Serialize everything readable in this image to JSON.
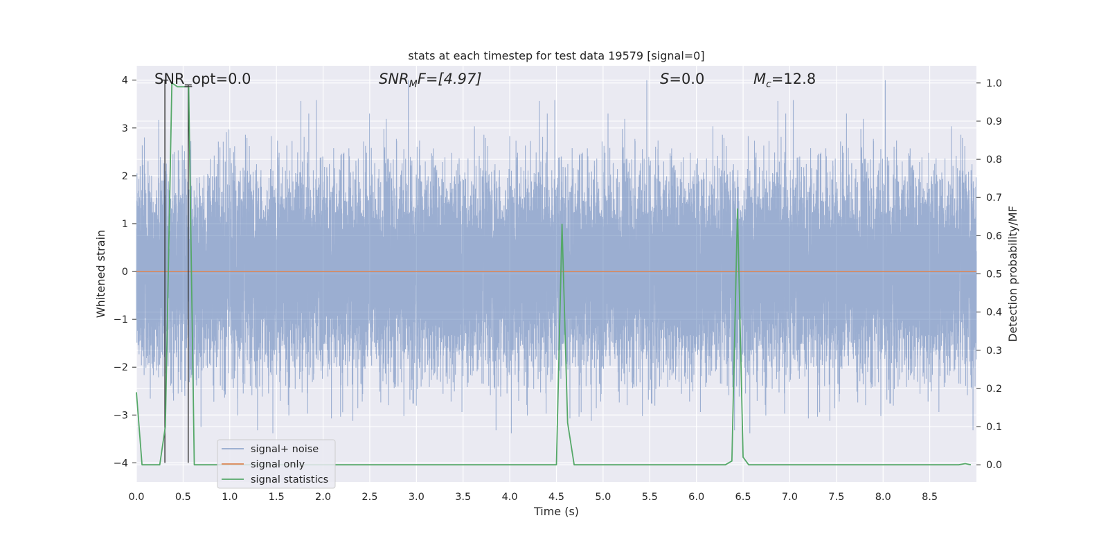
{
  "chart_data": {
    "type": "line",
    "title": "stats at each timestep for test data 19579 [signal=0]",
    "xlabel": "Time (s)",
    "ylabel": "Whitened strain",
    "y2label": "Detection probability/MF",
    "xlim": [
      0.0,
      9.0
    ],
    "ylim": [
      -4.4,
      4.3
    ],
    "y2lim": [
      -0.045,
      1.045
    ],
    "x_ticks": [
      "0.0",
      "0.5",
      "1.0",
      "1.5",
      "2.0",
      "2.5",
      "3.0",
      "3.5",
      "4.0",
      "4.5",
      "5.0",
      "5.5",
      "6.0",
      "6.5",
      "7.0",
      "7.5",
      "8.0",
      "8.5"
    ],
    "y_ticks": [
      "4",
      "3",
      "2",
      "1",
      "0",
      "−1",
      "−2",
      "−3",
      "−4"
    ],
    "y2_ticks": [
      "1.0",
      "0.9",
      "0.8",
      "0.7",
      "0.6",
      "0.5",
      "0.4",
      "0.3",
      "0.2",
      "0.1",
      "0.0"
    ],
    "grid": true,
    "legend_position": "lower-left",
    "annotations": {
      "snr_opt": "SNR_opt=0.0",
      "snr_mf": "SNR",
      "snr_mf_sub": "M",
      "snr_mf_rest": "F=[4.97]",
      "s": "S",
      "s_rest": "=0.0",
      "mc": "M",
      "mc_sub": "c",
      "mc_rest": "=12.8"
    },
    "series": [
      {
        "name": "signal+ noise",
        "color": "#4c72b0",
        "opacity": 0.5,
        "kind": "noise",
        "sample_rate": 2048,
        "sigma": 1.0,
        "range": [
          -4.0,
          4.0
        ]
      },
      {
        "name": "signal only",
        "color": "#dd8452",
        "kind": "flat",
        "value": 0.0
      },
      {
        "name": "signal statistics",
        "color": "#55a868",
        "axis": "right",
        "x": [
          0.0,
          0.06,
          0.25,
          0.31,
          0.38,
          0.44,
          0.56,
          0.62,
          0.69,
          4.5,
          4.56,
          4.62,
          4.69,
          6.31,
          6.38,
          6.44,
          6.5,
          6.56,
          8.81,
          8.88,
          8.94
        ],
        "y": [
          0.19,
          0.0,
          0.0,
          0.1,
          1.0,
          0.99,
          0.99,
          0.0,
          0.0,
          0.0,
          0.63,
          0.11,
          0.0,
          0.0,
          0.01,
          0.67,
          0.02,
          0.0,
          0.0,
          0.003,
          0.0
        ]
      }
    ],
    "vlines": [
      {
        "x": 0.305,
        "ymin": -4.0,
        "ymax": 4.0,
        "color": "#333333"
      },
      {
        "x": 0.555,
        "ymin": -4.0,
        "ymax": 3.9,
        "color": "#333333"
      }
    ]
  }
}
